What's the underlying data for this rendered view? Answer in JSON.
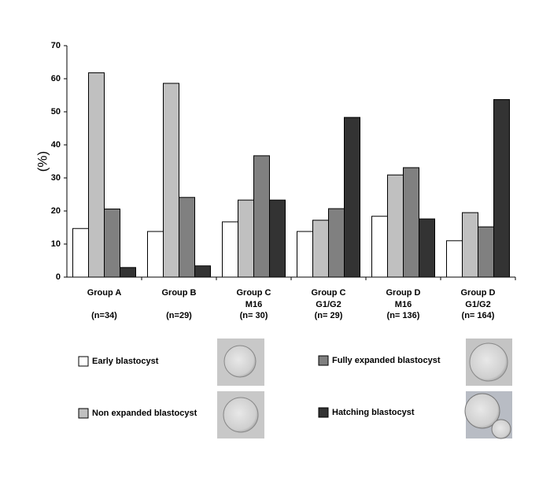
{
  "chart_data": {
    "type": "bar",
    "y_label": "(%)",
    "categories": [
      [
        "Group A",
        "(n=34)"
      ],
      [
        "Group B",
        "(n=29)"
      ],
      [
        "Group C",
        "M16",
        "(n= 30)"
      ],
      [
        "Group C",
        "G1/G2",
        "(n= 29)"
      ],
      [
        "Group D",
        "M16",
        "(n= 136)"
      ],
      [
        "Group D",
        "G1/G2",
        "(n= 164)"
      ]
    ],
    "series": [
      {
        "name": "Early blastocyst",
        "color": "#ffffff",
        "values": [
          14.7,
          13.8,
          16.7,
          13.8,
          18.4,
          11.0
        ]
      },
      {
        "name": "Non expanded blastocyst",
        "color": "#c0c0c0",
        "values": [
          61.8,
          58.6,
          23.3,
          17.2,
          30.9,
          19.5
        ]
      },
      {
        "name": "Fully expanded blastocyst",
        "color": "#808080",
        "values": [
          20.6,
          24.1,
          36.7,
          20.7,
          33.1,
          15.2
        ]
      },
      {
        "name": "Hatching blastocyst",
        "color": "#333333",
        "values": [
          2.9,
          3.4,
          23.3,
          48.3,
          17.6,
          53.7
        ]
      }
    ],
    "ylim": [
      0,
      70
    ],
    "yticks": [
      0,
      10,
      20,
      30,
      40,
      50,
      60,
      70
    ],
    "grid": false,
    "legend": "bottom"
  }
}
